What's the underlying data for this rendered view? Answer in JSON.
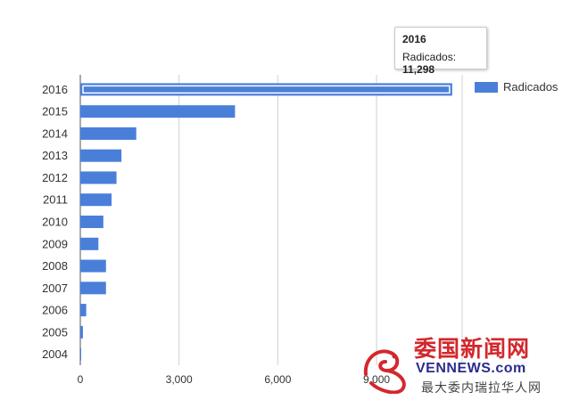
{
  "chart_data": {
    "type": "bar",
    "orientation": "horizontal",
    "categories": [
      "2016",
      "2015",
      "2014",
      "2013",
      "2012",
      "2011",
      "2010",
      "2009",
      "2008",
      "2007",
      "2006",
      "2005",
      "2004"
    ],
    "series": [
      {
        "name": "Radicados",
        "values": [
          11298,
          4700,
          1700,
          1250,
          1100,
          950,
          700,
          550,
          780,
          780,
          180,
          80,
          10
        ]
      }
    ],
    "xlim": [
      0,
      11600
    ],
    "xticks": [
      0,
      3000,
      6000,
      9000
    ],
    "xtick_labels": [
      "0",
      "3,000",
      "6,000",
      "9,000"
    ],
    "grid": true,
    "legend_position": "right",
    "colors": {
      "bar": "#4a7fd9",
      "grid": "#d0d0d0",
      "text": "#333333"
    },
    "highlighted_category": "2016"
  },
  "tooltip": {
    "title": "2016",
    "label": "Radicados:",
    "value": "11,298"
  },
  "watermark": {
    "chinese_title": "委国新闻网",
    "english": "VENNEWS.com",
    "subtitle": "最大委内瑞拉华人网",
    "colors": {
      "red": "#d2282d",
      "blue": "#2c2c8c"
    }
  }
}
